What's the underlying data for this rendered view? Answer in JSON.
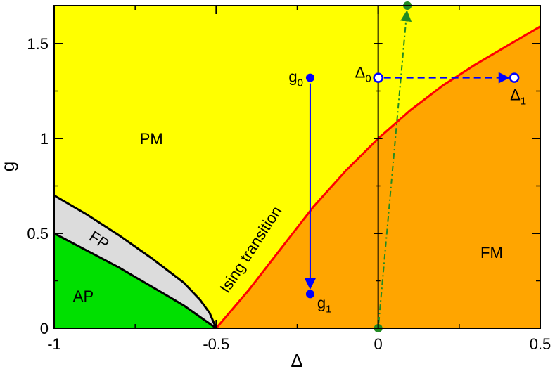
{
  "chart_data": {
    "type": "phase-diagram",
    "xlabel": "Δ",
    "ylabel": "g",
    "xlim": [
      -1,
      0.5
    ],
    "ylim": [
      0,
      1.7
    ],
    "x_ticks": [
      {
        "value": -1,
        "label": "-1"
      },
      {
        "value": -0.5,
        "label": "-0.5"
      },
      {
        "value": 0,
        "label": "0"
      },
      {
        "value": 0.5,
        "label": "0.5"
      }
    ],
    "y_ticks": [
      {
        "value": 0,
        "label": "0"
      },
      {
        "value": 0.5,
        "label": "0.5"
      },
      {
        "value": 1,
        "label": "1"
      },
      {
        "value": 1.5,
        "label": "1.5"
      }
    ],
    "phases": [
      {
        "label": "PM",
        "color": "#ffff00",
        "label_at": [
          -0.7,
          1.0
        ]
      },
      {
        "label": "FM",
        "color": "#ffa500",
        "label_at": [
          0.35,
          0.4
        ]
      },
      {
        "label": "FP",
        "color": "#dcdcdc",
        "label_at": [
          -0.87,
          0.47
        ]
      },
      {
        "label": "AP",
        "color": "#00e000",
        "label_at": [
          -0.91,
          0.17
        ]
      }
    ],
    "ising_boundary": {
      "label": "Ising transition",
      "color": "#ff0000",
      "points": [
        [
          -0.5,
          0.0
        ],
        [
          -0.4,
          0.2
        ],
        [
          -0.3,
          0.42
        ],
        [
          -0.2,
          0.64
        ],
        [
          -0.1,
          0.83
        ],
        [
          0.0,
          1.0
        ],
        [
          0.1,
          1.15
        ],
        [
          0.2,
          1.28
        ],
        [
          0.3,
          1.39
        ],
        [
          0.4,
          1.49
        ],
        [
          0.5,
          1.59
        ]
      ]
    },
    "fp_upper_boundary": {
      "color": "#000000",
      "points": [
        [
          -1.0,
          0.7
        ],
        [
          -0.9,
          0.6
        ],
        [
          -0.8,
          0.49
        ],
        [
          -0.7,
          0.37
        ],
        [
          -0.6,
          0.24
        ],
        [
          -0.55,
          0.15
        ],
        [
          -0.52,
          0.08
        ],
        [
          -0.5,
          0.0
        ]
      ]
    },
    "fp_lower_boundary": {
      "color": "#000000",
      "points": [
        [
          -1.0,
          0.5
        ],
        [
          -0.9,
          0.41
        ],
        [
          -0.8,
          0.32
        ],
        [
          -0.7,
          0.22
        ],
        [
          -0.6,
          0.12
        ],
        [
          -0.5,
          0.0
        ]
      ]
    },
    "vertical_line": {
      "x": 0,
      "color": "#000000"
    },
    "flow_g": {
      "color": "#0000ff",
      "from": {
        "x": -0.21,
        "y": 1.32,
        "label": "g",
        "sub": "0"
      },
      "to": {
        "x": -0.21,
        "y": 0.18,
        "label": "g",
        "sub": "1"
      }
    },
    "flow_delta": {
      "color": "#0000ff",
      "from": {
        "x": 0.0,
        "y": 1.32,
        "label": "Δ",
        "sub": "0"
      },
      "to": {
        "x": 0.42,
        "y": 1.32,
        "label": "Δ",
        "sub": "1"
      }
    },
    "flow_green": {
      "color": "#228b22",
      "from": {
        "x": 0.0,
        "y": 0.0
      },
      "to": {
        "x": 0.09,
        "y": 1.7
      }
    }
  }
}
